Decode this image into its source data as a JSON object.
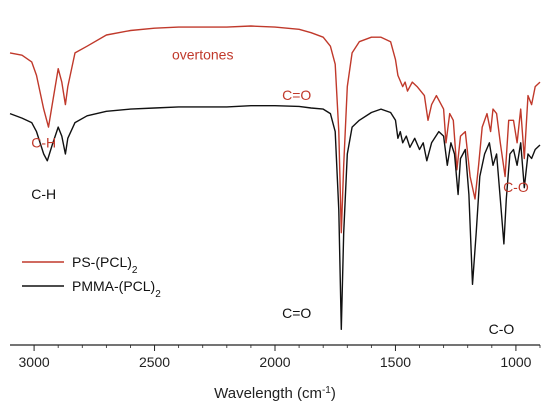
{
  "chart_data": {
    "type": "line",
    "title": "",
    "xlabel": "Wavelength",
    "xlabel_unit_base": "cm",
    "xlabel_unit_exp": "-1",
    "x_reversed": true,
    "xlim": [
      3100,
      900
    ],
    "x_ticks": [
      3000,
      2500,
      2000,
      1500,
      1000
    ],
    "y_axis_visible": false,
    "grid": false,
    "legend_position": "left-middle",
    "series": [
      {
        "name": "PS-(PCL)",
        "name_subscript": "2",
        "color": "#c0392b",
        "points": [
          [
            3100,
            0.85
          ],
          [
            3050,
            0.84
          ],
          [
            3010,
            0.81
          ],
          [
            2990,
            0.75
          ],
          [
            2960,
            0.6
          ],
          [
            2940,
            0.52
          ],
          [
            2925,
            0.62
          ],
          [
            2900,
            0.78
          ],
          [
            2885,
            0.72
          ],
          [
            2870,
            0.62
          ],
          [
            2860,
            0.7
          ],
          [
            2830,
            0.85
          ],
          [
            2780,
            0.88
          ],
          [
            2700,
            0.93
          ],
          [
            2600,
            0.95
          ],
          [
            2500,
            0.96
          ],
          [
            2400,
            0.965
          ],
          [
            2300,
            0.965
          ],
          [
            2200,
            0.965
          ],
          [
            2100,
            0.97
          ],
          [
            2000,
            0.965
          ],
          [
            1900,
            0.955
          ],
          [
            1850,
            0.94
          ],
          [
            1800,
            0.92
          ],
          [
            1770,
            0.88
          ],
          [
            1750,
            0.8
          ],
          [
            1735,
            0.5
          ],
          [
            1725,
            0.05
          ],
          [
            1715,
            0.35
          ],
          [
            1700,
            0.7
          ],
          [
            1680,
            0.85
          ],
          [
            1650,
            0.9
          ],
          [
            1600,
            0.92
          ],
          [
            1560,
            0.92
          ],
          [
            1520,
            0.9
          ],
          [
            1500,
            0.82
          ],
          [
            1490,
            0.75
          ],
          [
            1470,
            0.7
          ],
          [
            1460,
            0.72
          ],
          [
            1450,
            0.68
          ],
          [
            1430,
            0.72
          ],
          [
            1410,
            0.7
          ],
          [
            1380,
            0.66
          ],
          [
            1365,
            0.55
          ],
          [
            1350,
            0.62
          ],
          [
            1330,
            0.66
          ],
          [
            1300,
            0.6
          ],
          [
            1290,
            0.45
          ],
          [
            1275,
            0.58
          ],
          [
            1260,
            0.55
          ],
          [
            1245,
            0.33
          ],
          [
            1230,
            0.48
          ],
          [
            1210,
            0.5
          ],
          [
            1190,
            0.3
          ],
          [
            1170,
            0.2
          ],
          [
            1155,
            0.35
          ],
          [
            1140,
            0.52
          ],
          [
            1120,
            0.58
          ],
          [
            1105,
            0.5
          ],
          [
            1095,
            0.6
          ],
          [
            1080,
            0.58
          ],
          [
            1065,
            0.45
          ],
          [
            1045,
            0.3
          ],
          [
            1030,
            0.55
          ],
          [
            1010,
            0.55
          ],
          [
            995,
            0.45
          ],
          [
            980,
            0.6
          ],
          [
            965,
            0.38
          ],
          [
            950,
            0.66
          ],
          [
            935,
            0.62
          ],
          [
            920,
            0.7
          ],
          [
            900,
            0.72
          ]
        ]
      },
      {
        "name": "PMMA-(PCL)",
        "name_subscript": "2",
        "color": "#111111",
        "points": [
          [
            3100,
            0.58
          ],
          [
            3050,
            0.56
          ],
          [
            3010,
            0.54
          ],
          [
            2990,
            0.5
          ],
          [
            2960,
            0.4
          ],
          [
            2945,
            0.37
          ],
          [
            2925,
            0.44
          ],
          [
            2900,
            0.52
          ],
          [
            2885,
            0.48
          ],
          [
            2870,
            0.4
          ],
          [
            2860,
            0.47
          ],
          [
            2830,
            0.54
          ],
          [
            2780,
            0.57
          ],
          [
            2700,
            0.59
          ],
          [
            2600,
            0.6
          ],
          [
            2500,
            0.605
          ],
          [
            2400,
            0.61
          ],
          [
            2300,
            0.61
          ],
          [
            2200,
            0.61
          ],
          [
            2100,
            0.615
          ],
          [
            2000,
            0.615
          ],
          [
            1900,
            0.612
          ],
          [
            1850,
            0.605
          ],
          [
            1800,
            0.6
          ],
          [
            1770,
            0.58
          ],
          [
            1750,
            0.5
          ],
          [
            1735,
            0.15
          ],
          [
            1725,
            -0.38
          ],
          [
            1715,
            0.05
          ],
          [
            1700,
            0.4
          ],
          [
            1680,
            0.52
          ],
          [
            1650,
            0.55
          ],
          [
            1600,
            0.585
          ],
          [
            1560,
            0.6
          ],
          [
            1520,
            0.585
          ],
          [
            1500,
            0.55
          ],
          [
            1490,
            0.47
          ],
          [
            1480,
            0.5
          ],
          [
            1470,
            0.45
          ],
          [
            1455,
            0.48
          ],
          [
            1440,
            0.43
          ],
          [
            1420,
            0.47
          ],
          [
            1400,
            0.42
          ],
          [
            1385,
            0.45
          ],
          [
            1370,
            0.37
          ],
          [
            1350,
            0.45
          ],
          [
            1320,
            0.5
          ],
          [
            1300,
            0.48
          ],
          [
            1285,
            0.35
          ],
          [
            1270,
            0.45
          ],
          [
            1255,
            0.4
          ],
          [
            1240,
            0.22
          ],
          [
            1230,
            0.38
          ],
          [
            1210,
            0.42
          ],
          [
            1195,
            0.22
          ],
          [
            1180,
            -0.18
          ],
          [
            1165,
            0.05
          ],
          [
            1150,
            0.3
          ],
          [
            1130,
            0.4
          ],
          [
            1110,
            0.45
          ],
          [
            1095,
            0.35
          ],
          [
            1080,
            0.4
          ],
          [
            1065,
            0.2
          ],
          [
            1050,
            0.0
          ],
          [
            1040,
            0.2
          ],
          [
            1025,
            0.4
          ],
          [
            1010,
            0.42
          ],
          [
            995,
            0.35
          ],
          [
            980,
            0.45
          ],
          [
            965,
            0.25
          ],
          [
            950,
            0.4
          ],
          [
            935,
            0.38
          ],
          [
            920,
            0.42
          ],
          [
            900,
            0.44
          ]
        ]
      }
    ],
    "annotations": [
      {
        "text": "C-H",
        "color": "#c0392b",
        "x": 2960,
        "y": 0.43
      },
      {
        "text": "overtones",
        "color": "#c0392b",
        "x": 2300,
        "y": 0.82
      },
      {
        "text": "C=O",
        "color": "#c0392b",
        "x": 1910,
        "y": 0.64
      },
      {
        "text": "C-O",
        "color": "#c0392b",
        "x": 1000,
        "y": 0.23
      },
      {
        "text": "C-H",
        "color": "#111111",
        "x": 2960,
        "y": 0.2
      },
      {
        "text": "C=O",
        "color": "#111111",
        "x": 1910,
        "y": -0.33
      },
      {
        "text": "C-O",
        "color": "#111111",
        "x": 1060,
        "y": -0.4
      }
    ]
  }
}
